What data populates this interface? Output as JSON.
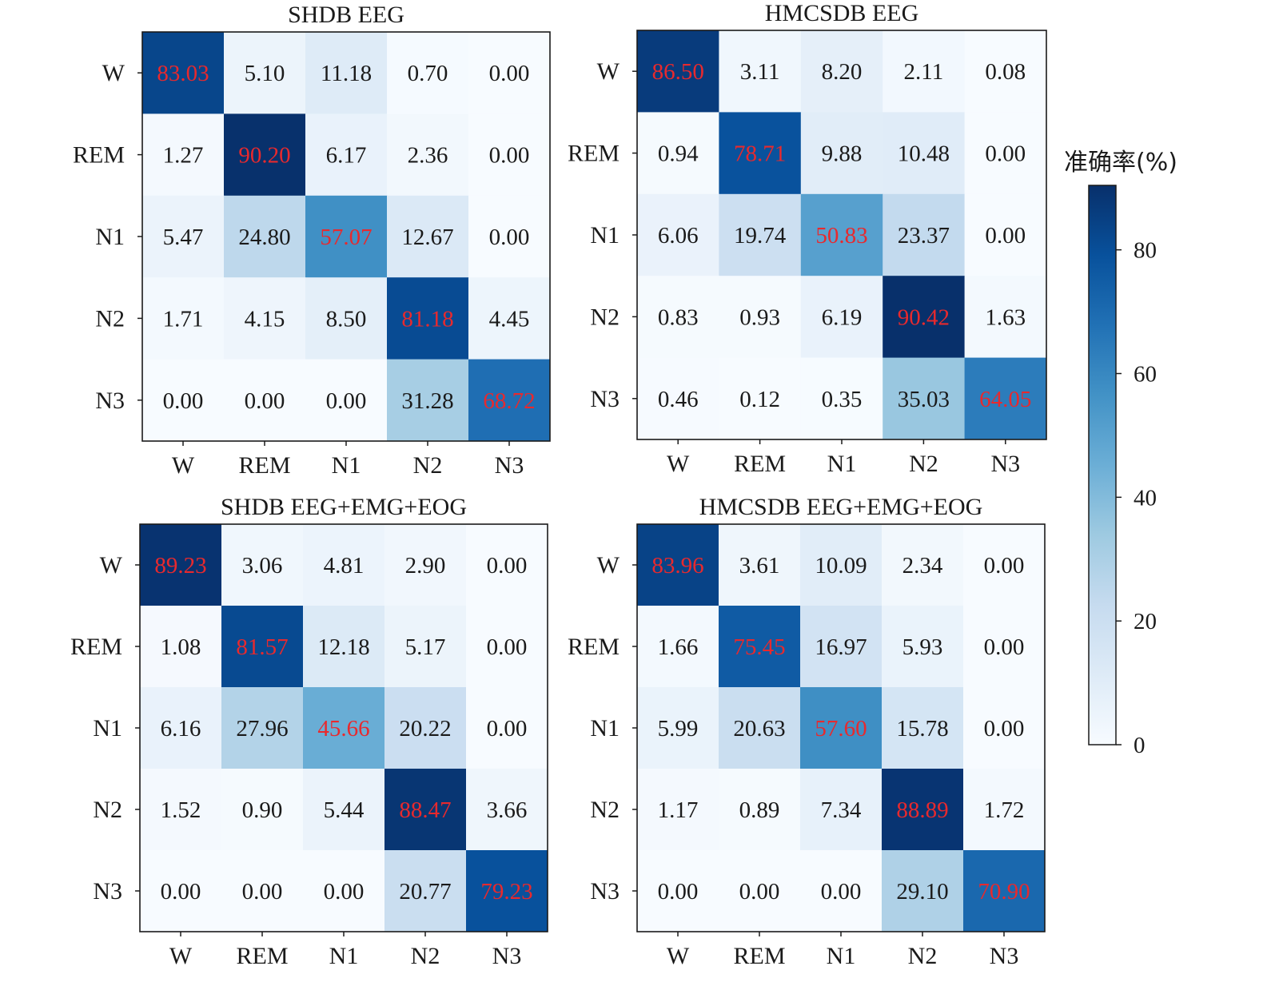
{
  "colorbar": {
    "label": "准确率(%)",
    "ticks": [
      0,
      20,
      40,
      60,
      80
    ],
    "range": [
      0,
      90.42
    ]
  },
  "colors": {
    "diagonal_text": "#e8292d",
    "offdiag_text": "#1a1a1a",
    "cmap_low": "#f7fbff",
    "cmap_high": "#08306b"
  },
  "chart_data": [
    {
      "type": "heatmap",
      "title": "SHDB EEG",
      "xlabels": [
        "W",
        "REM",
        "N1",
        "N2",
        "N3"
      ],
      "ylabels": [
        "W",
        "REM",
        "N1",
        "N2",
        "N3"
      ],
      "values": [
        [
          "83.03",
          "5.10",
          "11.18",
          "0.70",
          "0.00"
        ],
        [
          "1.27",
          "90.20",
          "6.17",
          "2.36",
          "0.00"
        ],
        [
          "5.47",
          "24.80",
          "57.07",
          "12.67",
          "0.00"
        ],
        [
          "1.71",
          "4.15",
          "8.50",
          "81.18",
          "4.45"
        ],
        [
          "0.00",
          "0.00",
          "0.00",
          "31.28",
          "68.72"
        ]
      ]
    },
    {
      "type": "heatmap",
      "title": "HMCSDB EEG",
      "xlabels": [
        "W",
        "REM",
        "N1",
        "N2",
        "N3"
      ],
      "ylabels": [
        "W",
        "REM",
        "N1",
        "N2",
        "N3"
      ],
      "values": [
        [
          "86.50",
          "3.11",
          "8.20",
          "2.11",
          "0.08"
        ],
        [
          "0.94",
          "78.71",
          "9.88",
          "10.48",
          "0.00"
        ],
        [
          "6.06",
          "19.74",
          "50.83",
          "23.37",
          "0.00"
        ],
        [
          "0.83",
          "0.93",
          "6.19",
          "90.42",
          "1.63"
        ],
        [
          "0.46",
          "0.12",
          "0.35",
          "35.03",
          "64.05"
        ]
      ]
    },
    {
      "type": "heatmap",
      "title": "SHDB EEG+EMG+EOG",
      "xlabels": [
        "W",
        "REM",
        "N1",
        "N2",
        "N3"
      ],
      "ylabels": [
        "W",
        "REM",
        "N1",
        "N2",
        "N3"
      ],
      "values": [
        [
          "89.23",
          "3.06",
          "4.81",
          "2.90",
          "0.00"
        ],
        [
          "1.08",
          "81.57",
          "12.18",
          "5.17",
          "0.00"
        ],
        [
          "6.16",
          "27.96",
          "45.66",
          "20.22",
          "0.00"
        ],
        [
          "1.52",
          "0.90",
          "5.44",
          "88.47",
          "3.66"
        ],
        [
          "0.00",
          "0.00",
          "0.00",
          "20.77",
          "79.23"
        ]
      ]
    },
    {
      "type": "heatmap",
      "title": "HMCSDB EEG+EMG+EOG",
      "xlabels": [
        "W",
        "REM",
        "N1",
        "N2",
        "N3"
      ],
      "ylabels": [
        "W",
        "REM",
        "N1",
        "N2",
        "N3"
      ],
      "values": [
        [
          "83.96",
          "3.61",
          "10.09",
          "2.34",
          "0.00"
        ],
        [
          "1.66",
          "75.45",
          "16.97",
          "5.93",
          "0.00"
        ],
        [
          "5.99",
          "20.63",
          "57.60",
          "15.78",
          "0.00"
        ],
        [
          "1.17",
          "0.89",
          "7.34",
          "88.89",
          "1.72"
        ],
        [
          "0.00",
          "0.00",
          "0.00",
          "29.10",
          "70.90"
        ]
      ]
    }
  ]
}
